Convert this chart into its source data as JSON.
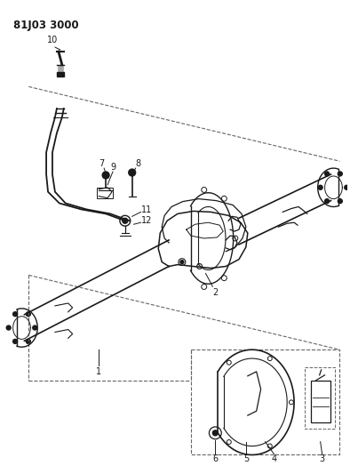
{
  "title": "81J03 3000",
  "bg": "#ffffff",
  "lc": "#1a1a1a",
  "dc": "#666666",
  "fig_w": 3.94,
  "fig_h": 5.33,
  "dpi": 100
}
